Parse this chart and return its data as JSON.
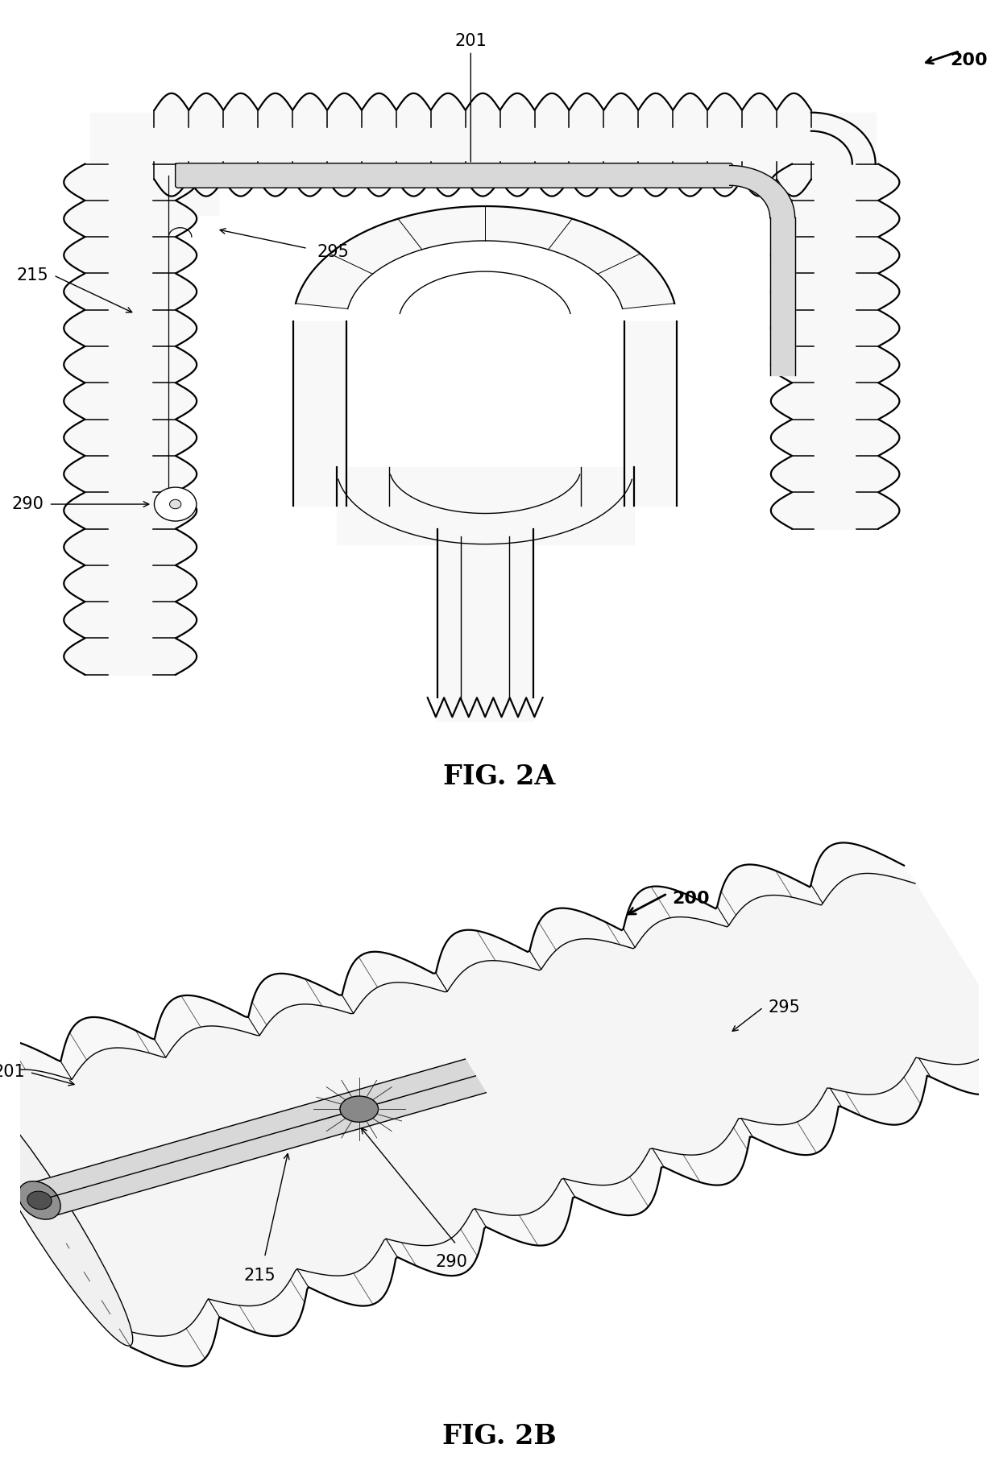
{
  "fig_width": 12.4,
  "fig_height": 18.34,
  "background_color": "#ffffff",
  "line_color": "#000000",
  "colon_fill": "#f8f8f8",
  "colon_gray": "#e0e0e0",
  "catheter_fill": "#d8d8d8",
  "fig2a_label": "FIG. 2A",
  "fig2b_label": "FIG. 2B",
  "label_200": "200",
  "label_201": "201",
  "label_215": "215",
  "label_290": "290",
  "label_295": "295",
  "fig_label_fontsize": 24,
  "annotation_fontsize": 15,
  "haustra_amp": 0.22,
  "tube_half": 0.45
}
